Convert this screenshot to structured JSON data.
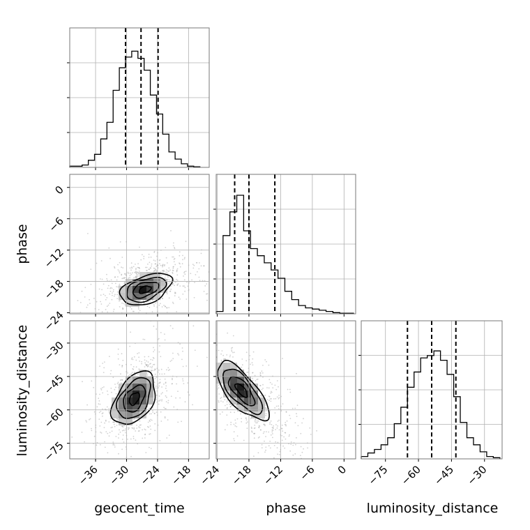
{
  "chart_data": {
    "type": "corner",
    "parameters": [
      "geocent_time",
      "phase",
      "luminosity_distance"
    ],
    "grid": true,
    "quantile_line_style": "dashed",
    "panels": [
      {
        "name": "hist-geocent_time",
        "type": "histogram",
        "xlim": [
          -41,
          -14
        ],
        "x_ticks": [
          -36,
          -30,
          -24,
          -18
        ],
        "bin_edges": [
          -41.0,
          -39.8,
          -38.6,
          -37.4,
          -36.2,
          -35.0,
          -33.8,
          -32.6,
          -31.4,
          -30.2,
          -29.0,
          -27.8,
          -26.6,
          -25.4,
          -24.2,
          -23.0,
          -21.8,
          -20.6,
          -19.4,
          -18.2,
          -17.0,
          -15.8
        ],
        "counts": [
          0.01,
          0.01,
          0.02,
          0.06,
          0.11,
          0.24,
          0.38,
          0.65,
          0.84,
          0.93,
          0.98,
          0.92,
          0.82,
          0.61,
          0.45,
          0.28,
          0.13,
          0.07,
          0.03,
          0.01,
          0.005
        ],
        "quantiles": [
          -30.2,
          -27.2,
          -23.9
        ]
      },
      {
        "name": "hist-phase",
        "type": "histogram",
        "xlim": [
          -24.2,
          2.2
        ],
        "x_ticks": [
          -24,
          -18,
          -12,
          -6,
          0
        ],
        "bin_edges": [
          -24.2,
          -22.9,
          -21.6,
          -20.3,
          -19.0,
          -17.7,
          -16.4,
          -15.1,
          -13.8,
          -12.5,
          -11.2,
          -9.9,
          -8.6,
          -7.3,
          -6.0,
          -4.7,
          -3.4,
          -2.1,
          -0.8,
          0.5,
          1.8
        ],
        "counts": [
          0.02,
          0.66,
          0.86,
          1.0,
          0.7,
          0.55,
          0.49,
          0.43,
          0.37,
          0.3,
          0.19,
          0.12,
          0.07,
          0.05,
          0.04,
          0.03,
          0.02,
          0.01,
          0.005,
          0.005
        ],
        "quantiles": [
          -20.7,
          -18.0,
          -13.1
        ]
      },
      {
        "name": "hist-luminosity_distance",
        "type": "histogram",
        "xlim": [
          -86,
          -22
        ],
        "x_ticks": [
          -75,
          -60,
          -45,
          -30
        ],
        "bin_edges": [
          -86.0,
          -83.0,
          -80.0,
          -77.0,
          -74.0,
          -71.0,
          -68.0,
          -65.0,
          -62.0,
          -59.0,
          -56.0,
          -53.0,
          -50.0,
          -47.0,
          -44.0,
          -41.0,
          -38.0,
          -35.0,
          -32.0,
          -29.0,
          -26.0,
          -23.0
        ],
        "counts": [
          0.02,
          0.05,
          0.08,
          0.12,
          0.18,
          0.3,
          0.44,
          0.61,
          0.74,
          0.86,
          0.88,
          0.92,
          0.84,
          0.72,
          0.53,
          0.31,
          0.18,
          0.12,
          0.06,
          0.02,
          0.01
        ],
        "quantiles": [
          -65.0,
          -54.0,
          -43.0
        ]
      },
      {
        "name": "scatter-geocent_time-phase",
        "type": "2d-density",
        "x": "geocent_time",
        "y": "phase",
        "xlim": [
          -41,
          -14
        ],
        "ylim": [
          -24.2,
          2.5
        ],
        "x_ticks": [
          -36,
          -30,
          -24,
          -18
        ],
        "y_ticks": [
          0,
          -6,
          -12,
          -18,
          -24
        ],
        "peak": [
          -26.5,
          -19.6
        ],
        "contour_levels": 4
      },
      {
        "name": "scatter-geocent_time-luminosity_distance",
        "type": "2d-density",
        "x": "geocent_time",
        "y": "luminosity_distance",
        "xlim": [
          -41,
          -14
        ],
        "ylim": [
          -82,
          -20
        ],
        "x_ticks": [
          -36,
          -30,
          -24,
          -18
        ],
        "y_ticks": [
          -30,
          -45,
          -60,
          -75
        ],
        "peak": [
          -28.5,
          -55
        ],
        "contour_levels": 4
      },
      {
        "name": "scatter-phase-luminosity_distance",
        "type": "2d-density",
        "x": "phase",
        "y": "luminosity_distance",
        "xlim": [
          -24.2,
          2.2
        ],
        "ylim": [
          -82,
          -20
        ],
        "x_ticks": [
          -24,
          -18,
          -12,
          -6,
          0
        ],
        "y_ticks": [
          -30,
          -45,
          -60,
          -75
        ],
        "peak": [
          -19.5,
          -51
        ],
        "contour_levels": 4
      }
    ]
  }
}
